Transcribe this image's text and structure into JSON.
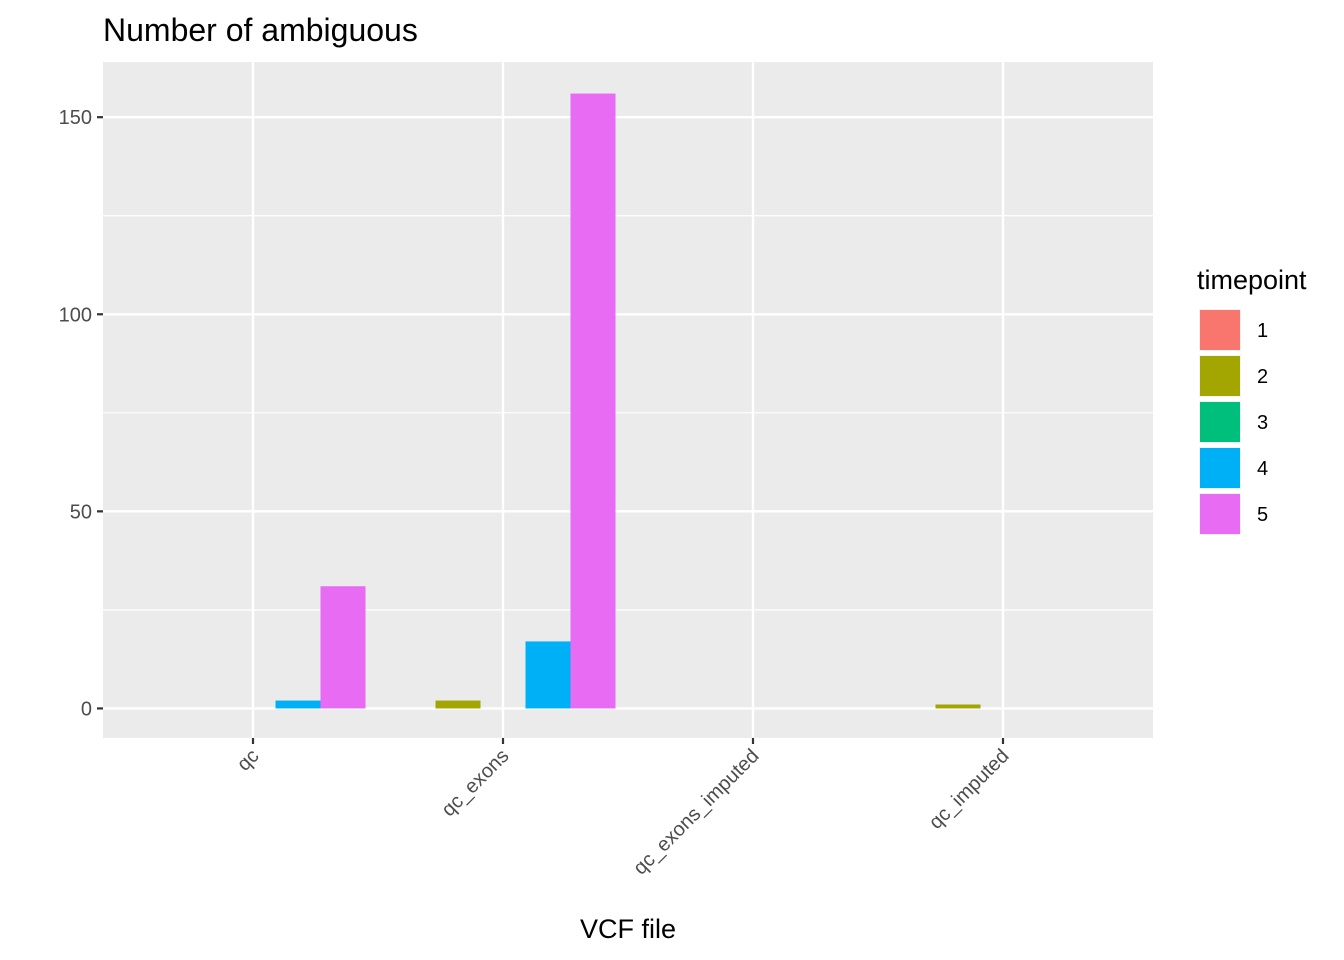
{
  "chart_data": {
    "type": "bar",
    "title": "Number of ambiguous",
    "xlabel": "VCF file",
    "ylabel": "",
    "categories": [
      "qc",
      "qc_exons",
      "qc_exons_imputed",
      "qc_imputed"
    ],
    "ylim": [
      -7.5,
      164
    ],
    "yticks": [
      0,
      50,
      100,
      150
    ],
    "grid": true,
    "legend": {
      "title": "timepoint",
      "placement": "right"
    },
    "series": [
      {
        "name": "1",
        "color": "#F8766D",
        "values": [
          0,
          0,
          0,
          0
        ]
      },
      {
        "name": "2",
        "color": "#A3A500",
        "values": [
          0,
          2,
          0,
          1
        ]
      },
      {
        "name": "3",
        "color": "#00BF7D",
        "values": [
          0,
          0,
          0,
          0
        ]
      },
      {
        "name": "4",
        "color": "#00B0F6",
        "values": [
          2,
          17,
          0,
          0
        ]
      },
      {
        "name": "5",
        "color": "#E76BF3",
        "values": [
          31,
          156,
          0,
          0
        ]
      }
    ]
  }
}
